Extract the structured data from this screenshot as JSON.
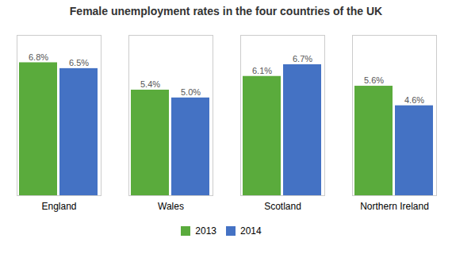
{
  "chart_data": {
    "type": "bar",
    "title": "Female unemployment rates in the four countries of the UK",
    "categories": [
      "England",
      "Wales",
      "Scotland",
      "Northern Ireland"
    ],
    "series": [
      {
        "name": "2013",
        "color": "#5aab3c",
        "values": [
          6.8,
          5.4,
          6.1,
          5.6
        ],
        "value_labels": [
          "6.8%",
          "5.4%",
          "6.1%",
          "5.6%"
        ]
      },
      {
        "name": "2014",
        "color": "#4472c4",
        "values": [
          6.5,
          5.0,
          6.7,
          4.6
        ],
        "value_labels": [
          "6.5%",
          "5.0%",
          "6.7%",
          "4.6%"
        ]
      }
    ],
    "ylim": [
      0,
      8.2
    ],
    "grid": false,
    "legend": "bottom",
    "data_labels": true,
    "tick_labels": "x"
  }
}
